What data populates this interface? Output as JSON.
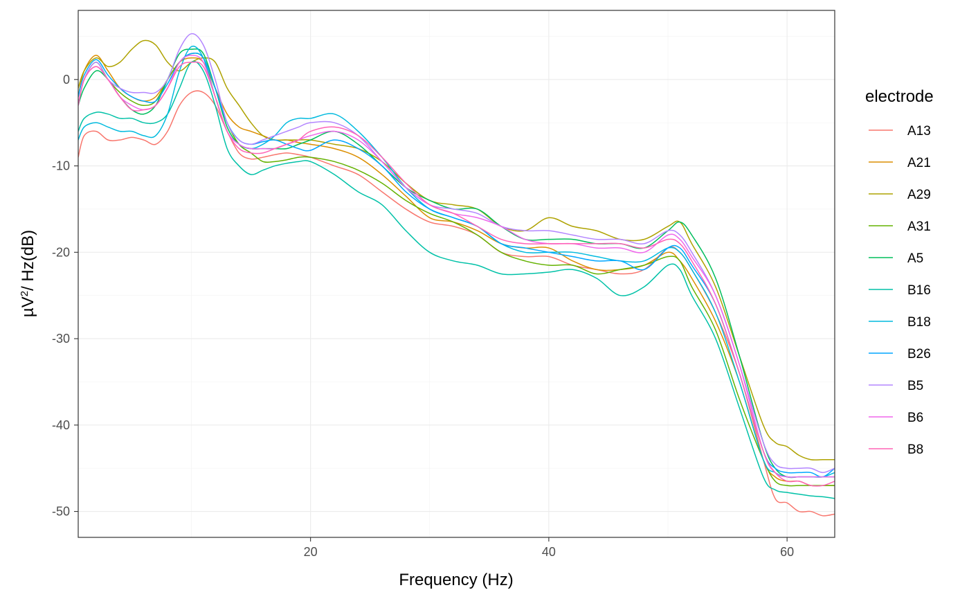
{
  "chart_data": {
    "type": "line",
    "xlabel": "Frequency (Hz)",
    "ylabel_base": "µV",
    "ylabel_sup": "2",
    "ylabel_rest": "/ Hz(dB)",
    "xlim": [
      0.5,
      64
    ],
    "ylim": [
      -53,
      8
    ],
    "x_ticks": [
      20,
      40,
      60
    ],
    "x_tick_labels": [
      "20",
      "40",
      "60"
    ],
    "y_ticks": [
      0,
      -10,
      -20,
      -30,
      -40,
      -50
    ],
    "y_tick_labels": [
      "0",
      "-10",
      "-20",
      "-30",
      "-40",
      "-50"
    ],
    "grid": true,
    "legend": {
      "title": "electrode",
      "position": "right"
    },
    "series": [
      {
        "name": "A13",
        "color": "#F8766D",
        "x": [
          0.5,
          1,
          2,
          3,
          4,
          5,
          6,
          7,
          8,
          9,
          10,
          11,
          12,
          13,
          14,
          15,
          16,
          17,
          18,
          19,
          20,
          22,
          24,
          26,
          28,
          30,
          32,
          34,
          36,
          38,
          40,
          42,
          44,
          46,
          48,
          50,
          51,
          52,
          54,
          56,
          58,
          59,
          60,
          61,
          62,
          63,
          64
        ],
        "y": [
          -9,
          -6.5,
          -6,
          -7,
          -7,
          -6.7,
          -7,
          -7.5,
          -6,
          -3,
          -1.5,
          -1.5,
          -3,
          -6,
          -8.5,
          -9.2,
          -9,
          -8.7,
          -8.5,
          -8.7,
          -9,
          -10,
          -11,
          -13,
          -15,
          -16.5,
          -17,
          -18,
          -20,
          -20.5,
          -20.5,
          -21.5,
          -22,
          -22.5,
          -22,
          -19.5,
          -20,
          -22,
          -27,
          -34,
          -44,
          -48.5,
          -49,
          -50,
          -50,
          -50.5,
          -50.3
        ]
      },
      {
        "name": "A21",
        "color": "#DB8E00",
        "x": [
          0.5,
          1,
          2,
          3,
          4,
          5,
          6,
          7,
          8,
          9,
          10,
          11,
          12,
          13,
          14,
          15,
          16,
          17,
          18,
          19,
          20,
          22,
          24,
          26,
          28,
          30,
          32,
          34,
          36,
          38,
          40,
          42,
          44,
          46,
          48,
          50,
          51,
          52,
          54,
          56,
          58,
          59,
          60,
          61,
          62,
          63,
          64
        ],
        "y": [
          -2,
          1,
          2.8,
          1,
          -1,
          -2,
          -2.5,
          -2,
          0,
          2,
          2.5,
          2,
          -1,
          -4,
          -5.5,
          -6,
          -6.5,
          -7,
          -7,
          -7.3,
          -7.5,
          -8,
          -9,
          -11,
          -13.5,
          -16,
          -16.5,
          -17.5,
          -19,
          -19.5,
          -19.5,
          -21,
          -22,
          -22,
          -21.5,
          -20,
          -21,
          -23,
          -28,
          -35,
          -44,
          -46,
          -46.5,
          -46.5,
          -47,
          -47,
          -47
        ]
      },
      {
        "name": "A29",
        "color": "#AEA200",
        "x": [
          0.5,
          1,
          2,
          3,
          4,
          5,
          6,
          7,
          8,
          9,
          10,
          11,
          12,
          13,
          14,
          15,
          16,
          17,
          18,
          19,
          20,
          22,
          24,
          26,
          28,
          30,
          32,
          34,
          36,
          38,
          40,
          42,
          44,
          46,
          48,
          50,
          51,
          52,
          54,
          56,
          58,
          59,
          60,
          61,
          62,
          63,
          64
        ],
        "y": [
          -1,
          1,
          2.5,
          1.5,
          2,
          3.5,
          4.5,
          4,
          2,
          1,
          2,
          2.5,
          2,
          -1,
          -3,
          -5,
          -6.5,
          -7,
          -7,
          -7,
          -7,
          -7.5,
          -8,
          -9.5,
          -12,
          -14,
          -14.5,
          -15,
          -17,
          -17.5,
          -16,
          -17,
          -17.5,
          -18.5,
          -18.5,
          -17,
          -16.5,
          -19,
          -24,
          -32,
          -40,
          -42,
          -42.5,
          -43.5,
          -44,
          -44,
          -44
        ]
      },
      {
        "name": "A31",
        "color": "#64B200",
        "x": [
          0.5,
          1,
          2,
          3,
          4,
          5,
          6,
          7,
          8,
          9,
          10,
          11,
          12,
          13,
          14,
          15,
          16,
          17,
          18,
          19,
          20,
          22,
          24,
          26,
          28,
          30,
          32,
          34,
          36,
          38,
          40,
          42,
          44,
          46,
          48,
          50,
          51,
          52,
          54,
          56,
          58,
          59,
          60,
          61,
          62,
          63,
          64
        ],
        "y": [
          -3,
          0,
          2,
          0,
          -1.5,
          -2.5,
          -3,
          -2.5,
          0,
          2,
          3,
          2.5,
          -1,
          -5,
          -7.5,
          -8.5,
          -9.5,
          -9.5,
          -9.3,
          -9,
          -9,
          -9.5,
          -10.5,
          -12,
          -14,
          -15.5,
          -16.5,
          -18,
          -20,
          -21,
          -21.5,
          -21.5,
          -22.5,
          -22,
          -21.5,
          -20.5,
          -21,
          -24,
          -29,
          -37,
          -44,
          -46.5,
          -47,
          -47,
          -47,
          -47,
          -47
        ]
      },
      {
        "name": "A5",
        "color": "#00BD5C",
        "x": [
          0.5,
          1,
          2,
          3,
          4,
          5,
          6,
          7,
          8,
          9,
          10,
          11,
          12,
          13,
          14,
          15,
          16,
          17,
          18,
          19,
          20,
          22,
          24,
          26,
          28,
          30,
          32,
          34,
          36,
          38,
          40,
          42,
          44,
          46,
          48,
          50,
          51,
          52,
          54,
          56,
          58,
          59,
          60,
          61,
          62,
          63,
          64
        ],
        "y": [
          -3,
          -1,
          1,
          0,
          -2,
          -3.5,
          -4,
          -3,
          0,
          3,
          3.5,
          3,
          -1,
          -5.5,
          -7.5,
          -8,
          -8,
          -8,
          -8,
          -7.5,
          -7,
          -6,
          -7.5,
          -10,
          -12.5,
          -14,
          -15,
          -15,
          -17,
          -18.5,
          -18.5,
          -18.5,
          -19,
          -19,
          -19.5,
          -17.5,
          -16.5,
          -18,
          -23,
          -32,
          -42,
          -45,
          -46,
          -46,
          -46,
          -46,
          -46
        ]
      },
      {
        "name": "B16",
        "color": "#00C1A7",
        "x": [
          0.5,
          1,
          2,
          3,
          4,
          5,
          6,
          7,
          8,
          9,
          10,
          11,
          12,
          13,
          14,
          15,
          16,
          17,
          18,
          19,
          20,
          22,
          24,
          26,
          28,
          30,
          32,
          34,
          36,
          38,
          40,
          42,
          44,
          46,
          48,
          50,
          51,
          52,
          54,
          56,
          58,
          59,
          60,
          61,
          62,
          63,
          64
        ],
        "y": [
          -6,
          -4.5,
          -3.8,
          -4,
          -4.5,
          -4.5,
          -5,
          -5,
          -4,
          -1,
          2,
          1,
          -3,
          -8,
          -10,
          -11,
          -10.5,
          -10,
          -9.7,
          -9.5,
          -9.5,
          -11,
          -13,
          -14.5,
          -17.5,
          -20,
          -21,
          -21.5,
          -22.5,
          -22.5,
          -22.3,
          -22,
          -23,
          -25,
          -24,
          -21.5,
          -22,
          -25,
          -30,
          -38,
          -46,
          -47.5,
          -47.8,
          -48,
          -48.2,
          -48.3,
          -48.5
        ]
      },
      {
        "name": "B18",
        "color": "#00BADE",
        "x": [
          0.5,
          1,
          2,
          3,
          4,
          5,
          6,
          7,
          8,
          9,
          10,
          11,
          12,
          13,
          14,
          15,
          16,
          17,
          18,
          19,
          20,
          22,
          24,
          26,
          28,
          30,
          32,
          34,
          36,
          38,
          40,
          42,
          44,
          46,
          48,
          50,
          51,
          52,
          54,
          56,
          58,
          59,
          60,
          61,
          62,
          63,
          64
        ],
        "y": [
          -7,
          -5.5,
          -5,
          -5.5,
          -6,
          -6,
          -6.5,
          -6.5,
          -4,
          1,
          3.8,
          2.5,
          -2,
          -6,
          -7.5,
          -8,
          -7.5,
          -6.5,
          -5,
          -4.5,
          -4.5,
          -4,
          -6,
          -9,
          -12.5,
          -15,
          -16,
          -17,
          -19,
          -20,
          -20,
          -20,
          -20.5,
          -21,
          -21,
          -19.5,
          -20,
          -22,
          -27,
          -35,
          -44,
          -45.5,
          -46,
          -46,
          -46,
          -46,
          -45.5
        ]
      },
      {
        "name": "B26",
        "color": "#00A6FF",
        "x": [
          0.5,
          1,
          2,
          3,
          4,
          5,
          6,
          7,
          8,
          9,
          10,
          11,
          12,
          13,
          14,
          15,
          16,
          17,
          18,
          19,
          20,
          22,
          24,
          26,
          28,
          30,
          32,
          34,
          36,
          38,
          40,
          42,
          44,
          46,
          48,
          50,
          51,
          52,
          54,
          56,
          58,
          59,
          60,
          61,
          62,
          63,
          64
        ],
        "y": [
          -2,
          0.5,
          2.3,
          0.5,
          -1,
          -2,
          -2.5,
          -2.5,
          -0.5,
          2,
          3,
          2.5,
          -1,
          -5,
          -7,
          -7.5,
          -7.2,
          -7,
          -7.5,
          -8,
          -8.2,
          -7,
          -8,
          -10,
          -13,
          -15,
          -16,
          -17,
          -19,
          -19.5,
          -20,
          -20.5,
          -21,
          -21,
          -22,
          -19.5,
          -19.5,
          -21.5,
          -26,
          -34,
          -43,
          -45,
          -45.5,
          -45.5,
          -45.5,
          -46,
          -45
        ]
      },
      {
        "name": "B5",
        "color": "#B385FF",
        "x": [
          0.5,
          1,
          2,
          3,
          4,
          5,
          6,
          7,
          8,
          9,
          10,
          11,
          12,
          13,
          14,
          15,
          16,
          17,
          18,
          19,
          20,
          22,
          24,
          26,
          28,
          30,
          32,
          34,
          36,
          38,
          40,
          42,
          44,
          46,
          48,
          50,
          51,
          52,
          54,
          56,
          58,
          59,
          60,
          61,
          62,
          63,
          64
        ],
        "y": [
          -3,
          0,
          2,
          0,
          -1,
          -1.5,
          -1.5,
          -1.5,
          0,
          3.5,
          5.3,
          4,
          0,
          -5,
          -7,
          -7.5,
          -7,
          -6.5,
          -6,
          -5.5,
          -5,
          -5,
          -6.5,
          -9.5,
          -12.5,
          -14.5,
          -15,
          -15.5,
          -17,
          -17.5,
          -17.5,
          -18,
          -18.5,
          -18.5,
          -19,
          -17.5,
          -18,
          -20,
          -25,
          -33,
          -42,
          -44.5,
          -45,
          -45,
          -45,
          -45.5,
          -45
        ]
      },
      {
        "name": "B6",
        "color": "#EF67EB",
        "x": [
          0.5,
          1,
          2,
          3,
          4,
          5,
          6,
          7,
          8,
          9,
          10,
          11,
          12,
          13,
          14,
          15,
          16,
          17,
          18,
          19,
          20,
          22,
          24,
          26,
          28,
          30,
          32,
          34,
          36,
          38,
          40,
          42,
          44,
          46,
          48,
          50,
          51,
          52,
          54,
          56,
          58,
          59,
          60,
          61,
          62,
          63,
          64
        ],
        "y": [
          -3,
          0,
          1.5,
          0,
          -2,
          -3,
          -3.5,
          -3,
          -1,
          2,
          2.8,
          2,
          -2,
          -6,
          -7.5,
          -8,
          -8,
          -8,
          -7.5,
          -7,
          -6.5,
          -6,
          -7,
          -9.5,
          -12.5,
          -14.5,
          -15.5,
          -16,
          -17,
          -18.5,
          -19,
          -19,
          -19.5,
          -19.5,
          -20,
          -18,
          -18.5,
          -20.5,
          -25,
          -33,
          -43,
          -45.5,
          -46,
          -46,
          -46,
          -46,
          -46
        ]
      },
      {
        "name": "B8",
        "color": "#FF63B6",
        "x": [
          0.5,
          1,
          2,
          3,
          4,
          5,
          6,
          7,
          8,
          9,
          10,
          11,
          12,
          13,
          14,
          15,
          16,
          17,
          18,
          19,
          20,
          22,
          24,
          26,
          28,
          30,
          32,
          34,
          36,
          38,
          40,
          42,
          44,
          46,
          48,
          50,
          51,
          52,
          54,
          56,
          58,
          59,
          60,
          61,
          62,
          63,
          64
        ],
        "y": [
          -3,
          0,
          1.5,
          0,
          -2,
          -3.5,
          -3.5,
          -3,
          -1,
          1.5,
          2,
          1.5,
          -2,
          -6,
          -8,
          -8.5,
          -8.5,
          -8,
          -7.5,
          -7,
          -6,
          -5.5,
          -6.5,
          -9,
          -12,
          -14.5,
          -15.5,
          -17,
          -18.5,
          -19,
          -19,
          -19,
          -19,
          -19,
          -19.5,
          -18.5,
          -19,
          -21,
          -26,
          -34,
          -43,
          -45.5,
          -46.5,
          -46.5,
          -47,
          -47,
          -46.5
        ]
      }
    ]
  }
}
